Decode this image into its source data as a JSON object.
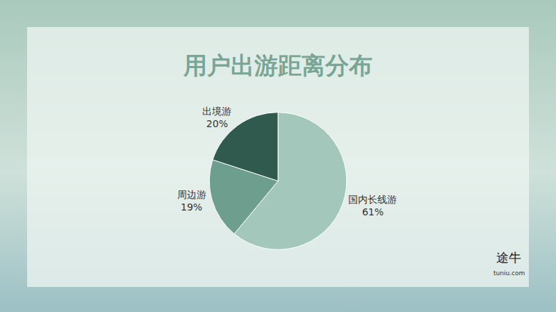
{
  "chart_data": {
    "type": "pie",
    "title": "用户出游距离分布",
    "categories": [
      "国内长线游",
      "周边游",
      "出境游"
    ],
    "values": [
      61,
      19,
      20
    ],
    "value_labels": [
      "61%",
      "19%",
      "20%"
    ],
    "colors": [
      "#a3c8bb",
      "#6e9f8e",
      "#2f5a4d"
    ],
    "data_labels": true,
    "annotations": [
      "途牛",
      "tuniu.com"
    ]
  }
}
